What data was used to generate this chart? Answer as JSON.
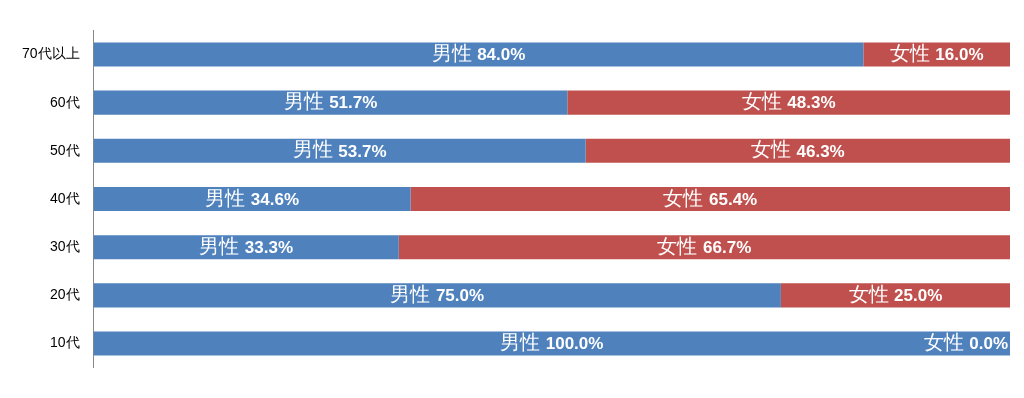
{
  "chart_data": {
    "type": "bar",
    "orientation": "horizontal",
    "stacked": true,
    "categories": [
      "70代以上",
      "60代",
      "50代",
      "40代",
      "30代",
      "20代",
      "10代"
    ],
    "xlim": [
      0,
      100
    ],
    "grid": false,
    "legend": false,
    "tick_labels": "y",
    "series": [
      {
        "name": "男性",
        "color": "#4f81bd",
        "values": [
          84.0,
          51.7,
          53.7,
          34.6,
          33.3,
          75.0,
          100.0
        ],
        "value_labels": [
          "84.0%",
          "51.7%",
          "53.7%",
          "34.6%",
          "33.3%",
          "75.0%",
          "100.0%"
        ]
      },
      {
        "name": "女性",
        "color": "#c0504d",
        "values": [
          16.0,
          48.3,
          46.3,
          65.4,
          66.7,
          25.0,
          0.0
        ],
        "value_labels": [
          "16.0%",
          "48.3%",
          "46.3%",
          "65.4%",
          "66.7%",
          "25.0%",
          "0.0%"
        ]
      }
    ]
  }
}
